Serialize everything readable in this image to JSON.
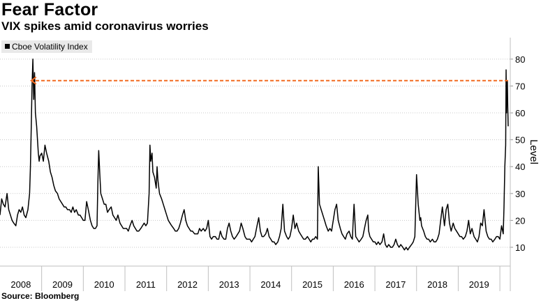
{
  "header": {
    "title": "Fear Factor",
    "subtitle": "VIX spikes amid coronavirus worries"
  },
  "footer": {
    "source": "Source: Bloomberg"
  },
  "chart_data": {
    "type": "line",
    "title": "Fear Factor",
    "subtitle": "VIX spikes amid coronavirus worries",
    "ylabel": "Level",
    "xlabel": "",
    "ylim": [
      3,
      88
    ],
    "xlim": [
      2008.0,
      2020.25
    ],
    "y_axis_position": "right",
    "yticks": [
      10,
      20,
      30,
      40,
      50,
      60,
      70,
      80
    ],
    "xtick_labels": [
      "2008",
      "2009",
      "2010",
      "2011",
      "2012",
      "2013",
      "2014",
      "2015",
      "2016",
      "2017",
      "2018",
      "2019"
    ],
    "grid": true,
    "legend": {
      "position": "top-left",
      "entries": [
        "Cboe Volatility Index"
      ]
    },
    "colors": {
      "series": "#000000",
      "annotation": "#f26b21"
    },
    "annotation": {
      "type": "dashed-arrow",
      "y": 72,
      "direction": "left",
      "from_x": 2020.2,
      "to_x": 2008.75
    },
    "series": [
      {
        "name": "Cboe Volatility Index",
        "x": [
          2008.0,
          2008.04,
          2008.08,
          2008.12,
          2008.17,
          2008.21,
          2008.25,
          2008.29,
          2008.33,
          2008.38,
          2008.42,
          2008.46,
          2008.5,
          2008.54,
          2008.58,
          2008.62,
          2008.67,
          2008.71,
          2008.73,
          2008.75,
          2008.77,
          2008.79,
          2008.81,
          2008.83,
          2008.85,
          2008.88,
          2008.9,
          2008.92,
          2008.94,
          2008.96,
          2009.0,
          2009.04,
          2009.08,
          2009.12,
          2009.17,
          2009.21,
          2009.25,
          2009.29,
          2009.33,
          2009.38,
          2009.42,
          2009.46,
          2009.5,
          2009.54,
          2009.58,
          2009.62,
          2009.67,
          2009.71,
          2009.75,
          2009.79,
          2009.83,
          2009.88,
          2009.92,
          2009.96,
          2010.0,
          2010.04,
          2010.08,
          2010.12,
          2010.17,
          2010.21,
          2010.25,
          2010.29,
          2010.33,
          2010.35,
          2010.37,
          2010.4,
          2010.42,
          2010.46,
          2010.5,
          2010.54,
          2010.58,
          2010.62,
          2010.67,
          2010.71,
          2010.75,
          2010.79,
          2010.83,
          2010.88,
          2010.92,
          2010.96,
          2011.0,
          2011.04,
          2011.08,
          2011.12,
          2011.17,
          2011.21,
          2011.25,
          2011.29,
          2011.33,
          2011.38,
          2011.42,
          2011.46,
          2011.5,
          2011.54,
          2011.58,
          2011.6,
          2011.62,
          2011.65,
          2011.67,
          2011.71,
          2011.75,
          2011.77,
          2011.79,
          2011.83,
          2011.88,
          2011.92,
          2011.96,
          2012.0,
          2012.04,
          2012.08,
          2012.12,
          2012.17,
          2012.21,
          2012.25,
          2012.29,
          2012.33,
          2012.38,
          2012.42,
          2012.46,
          2012.5,
          2012.54,
          2012.58,
          2012.62,
          2012.67,
          2012.71,
          2012.75,
          2012.79,
          2012.83,
          2012.88,
          2012.92,
          2012.96,
          2013.0,
          2013.04,
          2013.08,
          2013.12,
          2013.17,
          2013.21,
          2013.25,
          2013.29,
          2013.33,
          2013.38,
          2013.42,
          2013.46,
          2013.5,
          2013.54,
          2013.58,
          2013.62,
          2013.67,
          2013.71,
          2013.75,
          2013.79,
          2013.83,
          2013.88,
          2013.92,
          2013.96,
          2014.0,
          2014.04,
          2014.08,
          2014.12,
          2014.17,
          2014.21,
          2014.25,
          2014.29,
          2014.33,
          2014.38,
          2014.42,
          2014.46,
          2014.5,
          2014.54,
          2014.58,
          2014.62,
          2014.67,
          2014.71,
          2014.75,
          2014.79,
          2014.83,
          2014.88,
          2014.92,
          2014.96,
          2015.0,
          2015.04,
          2015.08,
          2015.12,
          2015.17,
          2015.21,
          2015.25,
          2015.29,
          2015.33,
          2015.38,
          2015.42,
          2015.46,
          2015.5,
          2015.54,
          2015.58,
          2015.62,
          2015.64,
          2015.67,
          2015.71,
          2015.75,
          2015.79,
          2015.83,
          2015.88,
          2015.92,
          2015.96,
          2016.0,
          2016.04,
          2016.08,
          2016.12,
          2016.17,
          2016.21,
          2016.25,
          2016.29,
          2016.33,
          2016.38,
          2016.42,
          2016.46,
          2016.48,
          2016.5,
          2016.54,
          2016.58,
          2016.62,
          2016.67,
          2016.71,
          2016.75,
          2016.79,
          2016.83,
          2016.85,
          2016.88,
          2016.92,
          2016.96,
          2017.0,
          2017.04,
          2017.08,
          2017.12,
          2017.17,
          2017.21,
          2017.25,
          2017.29,
          2017.33,
          2017.38,
          2017.42,
          2017.46,
          2017.5,
          2017.54,
          2017.58,
          2017.62,
          2017.67,
          2017.71,
          2017.75,
          2017.79,
          2017.83,
          2017.88,
          2017.92,
          2017.96,
          2018.0,
          2018.04,
          2018.08,
          2018.1,
          2018.12,
          2018.17,
          2018.21,
          2018.25,
          2018.29,
          2018.33,
          2018.38,
          2018.42,
          2018.46,
          2018.5,
          2018.54,
          2018.58,
          2018.62,
          2018.67,
          2018.71,
          2018.75,
          2018.79,
          2018.83,
          2018.88,
          2018.92,
          2018.96,
          2019.0,
          2019.04,
          2019.08,
          2019.12,
          2019.17,
          2019.21,
          2019.25,
          2019.29,
          2019.33,
          2019.38,
          2019.42,
          2019.46,
          2019.5,
          2019.54,
          2019.58,
          2019.62,
          2019.67,
          2019.71,
          2019.75,
          2019.79,
          2019.83,
          2019.88,
          2019.92,
          2019.96,
          2020.0,
          2020.04,
          2020.08,
          2020.1,
          2020.12,
          2020.14,
          2020.15,
          2020.16,
          2020.17,
          2020.18,
          2020.19,
          2020.2
        ],
        "values": [
          22,
          28,
          26,
          25,
          30,
          24,
          22,
          20,
          19,
          18,
          22,
          24,
          23,
          25,
          22,
          21,
          24,
          30,
          40,
          55,
          70,
          80,
          65,
          75,
          60,
          55,
          50,
          45,
          42,
          44,
          45,
          42,
          48,
          45,
          42,
          38,
          36,
          33,
          31,
          30,
          28,
          27,
          26,
          25,
          25,
          24,
          24,
          23,
          25,
          23,
          24,
          22,
          22,
          21,
          20,
          20,
          27,
          24,
          20,
          18,
          17,
          17,
          18,
          34,
          46,
          36,
          30,
          28,
          26,
          26,
          23,
          24,
          25,
          22,
          21,
          20,
          22,
          19,
          18,
          17,
          17,
          17,
          16,
          18,
          20,
          18,
          17,
          16,
          16,
          17,
          18,
          19,
          18,
          19,
          30,
          48,
          42,
          45,
          38,
          36,
          32,
          40,
          35,
          30,
          28,
          26,
          24,
          22,
          20,
          19,
          18,
          17,
          16,
          16,
          17,
          19,
          22,
          24,
          20,
          18,
          17,
          16,
          16,
          15,
          15,
          15,
          17,
          16,
          17,
          16,
          17,
          20,
          14,
          13,
          14,
          14,
          13,
          13,
          16,
          14,
          13,
          13,
          17,
          19,
          16,
          14,
          13,
          14,
          15,
          16,
          19,
          17,
          14,
          13,
          13,
          13,
          12,
          13,
          14,
          18,
          21,
          16,
          14,
          14,
          15,
          17,
          14,
          13,
          12,
          12,
          11,
          12,
          14,
          17,
          26,
          16,
          14,
          13,
          14,
          17,
          22,
          17,
          19,
          16,
          15,
          14,
          13,
          13,
          14,
          13,
          12,
          13,
          13,
          14,
          13,
          40,
          26,
          24,
          22,
          20,
          18,
          16,
          17,
          16,
          20,
          24,
          26,
          20,
          17,
          15,
          14,
          13,
          15,
          16,
          14,
          13,
          20,
          26,
          14,
          13,
          12,
          13,
          14,
          17,
          20,
          22,
          16,
          14,
          13,
          12,
          12,
          11,
          12,
          11,
          12,
          15,
          11,
          10,
          11,
          10,
          10,
          11,
          13,
          11,
          10,
          11,
          10,
          9,
          10,
          9,
          10,
          11,
          12,
          14,
          37,
          26,
          20,
          21,
          18,
          16,
          14,
          13,
          13,
          12,
          13,
          12,
          12,
          13,
          15,
          20,
          25,
          18,
          24,
          26,
          19,
          16,
          19,
          17,
          16,
          15,
          14,
          14,
          13,
          14,
          16,
          20,
          15,
          17,
          14,
          13,
          12,
          14,
          19,
          18,
          24,
          16,
          14,
          13,
          13,
          12,
          13,
          14,
          14,
          13,
          18,
          15,
          25,
          40,
          48,
          76,
          60,
          70,
          72,
          62,
          55
        ]
      }
    ]
  }
}
